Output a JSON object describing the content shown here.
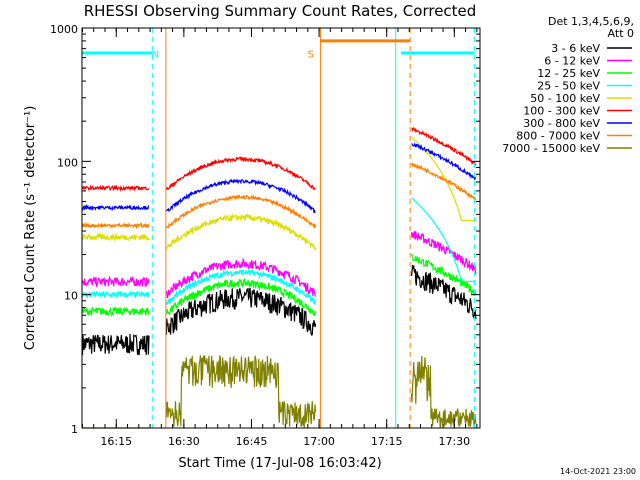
{
  "chart_data": {
    "type": "line",
    "title": "RHESSI Observing Summary Count Rates, Corrected",
    "xlabel": "Start Time (17-Jul-08 16:03:42)",
    "ylabel": "Corrected Count Rate (s⁻¹ detector⁻¹)",
    "yscale": "log",
    "ylim": [
      1,
      1000
    ],
    "xlim_min": [
      3.7,
      92
    ],
    "xticks": [
      {
        "t": 11.3,
        "label": "16:15"
      },
      {
        "t": 26.3,
        "label": "16:30"
      },
      {
        "t": 41.3,
        "label": "16:45"
      },
      {
        "t": 56.3,
        "label": "17:00"
      },
      {
        "t": 71.3,
        "label": "17:15"
      },
      {
        "t": 86.3,
        "label": "17:30"
      }
    ],
    "yticks": [
      {
        "v": 1,
        "label": "1"
      },
      {
        "v": 10,
        "label": "10"
      },
      {
        "v": 100,
        "label": "100"
      },
      {
        "v": 1000,
        "label": "1000"
      }
    ],
    "legend_title": [
      "Det 1,3,4,5,6,9,",
      "Att 0"
    ],
    "legend_position": "right",
    "series": [
      {
        "name": "3 - 6 keV",
        "color": "#000000"
      },
      {
        "name": "6 - 12 keV",
        "color": "#ff00ff"
      },
      {
        "name": "12 - 25 keV",
        "color": "#00ff00"
      },
      {
        "name": "25 - 50 keV",
        "color": "#00ffff"
      },
      {
        "name": "50 - 100 keV",
        "color": "#dddd00"
      },
      {
        "name": "100 - 300 keV",
        "color": "#ff0000"
      },
      {
        "name": "300 - 800 keV",
        "color": "#0000ff"
      },
      {
        "name": "800 - 7000 keV",
        "color": "#ff8000"
      },
      {
        "name": "7000 - 15000 keV",
        "color": "#808000"
      }
    ],
    "annotations": [
      {
        "text": "N",
        "t": 20.0,
        "color": "#00ffff"
      },
      {
        "text": "S",
        "t": 54.5,
        "color": "#ff8000"
      }
    ],
    "footer": "14-Oct-2021 23:00"
  }
}
